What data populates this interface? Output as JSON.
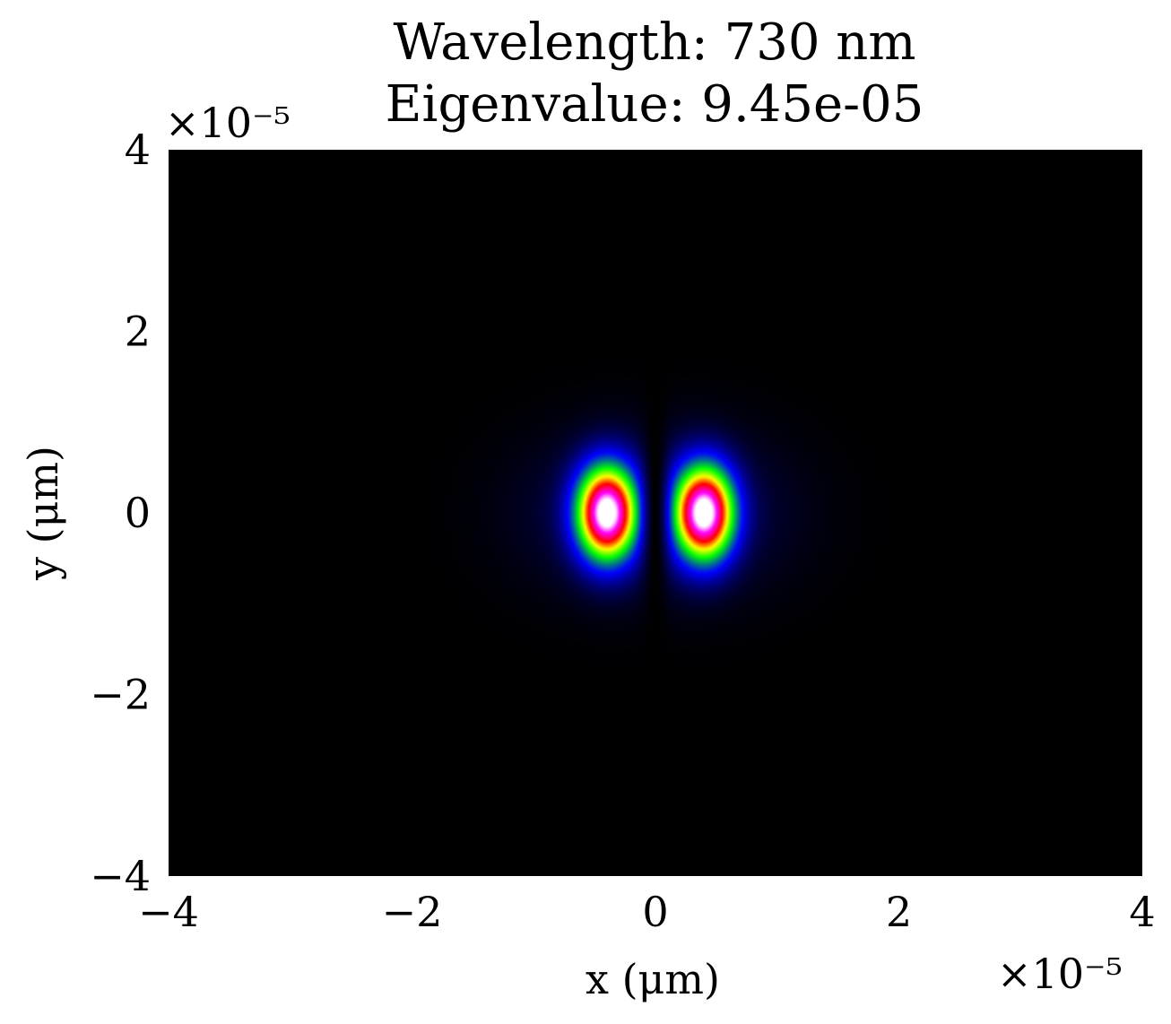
{
  "chart_data": {
    "type": "heatmap",
    "title_lines": [
      "Wavelength: 730 nm",
      "Eigenvalue: 9.45e-05"
    ],
    "xlabel": "x (μm)",
    "ylabel": "y (μm)",
    "x_multiplier": "×10⁻⁵",
    "y_multiplier": "×10⁻⁵",
    "xlim": [
      -4,
      4
    ],
    "ylim": [
      -4,
      4
    ],
    "x_ticks": [
      -4,
      -2,
      0,
      2,
      4
    ],
    "y_ticks": [
      -4,
      -2,
      0,
      2,
      4
    ],
    "x_tick_labels": [
      "−4",
      "−2",
      "0",
      "2",
      "4"
    ],
    "y_tick_labels": [
      "−4",
      "−2",
      "0",
      "2",
      "4"
    ],
    "colormap": [
      "#000000",
      "#0000ff",
      "#00ff00",
      "#ffff00",
      "#ff0000",
      "#ff00ff",
      "#ffffff"
    ],
    "background_color": "#000000",
    "grid": false,
    "field": {
      "description_of_pattern": "two-lobe mode",
      "lobes": [
        {
          "x_center": -0.4,
          "y_center": 0.0,
          "peak": 1.0
        },
        {
          "x_center": 0.4,
          "y_center": 0.0,
          "peak": 1.0
        }
      ],
      "node_line_x": 0.0
    }
  }
}
